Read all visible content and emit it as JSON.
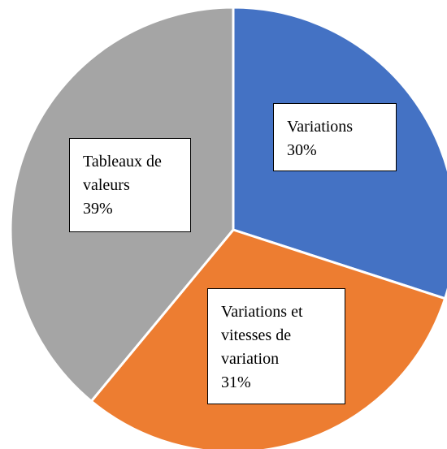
{
  "chart_data": {
    "type": "pie",
    "categories": [
      "Variations",
      "Variations et vitesses de variation",
      "Tableaux de valeurs"
    ],
    "values": [
      30,
      31,
      39
    ],
    "value_labels": [
      "30%",
      "31%",
      "39%"
    ],
    "colors": [
      "#4472c4",
      "#ed7d31",
      "#a5a5a5"
    ]
  }
}
